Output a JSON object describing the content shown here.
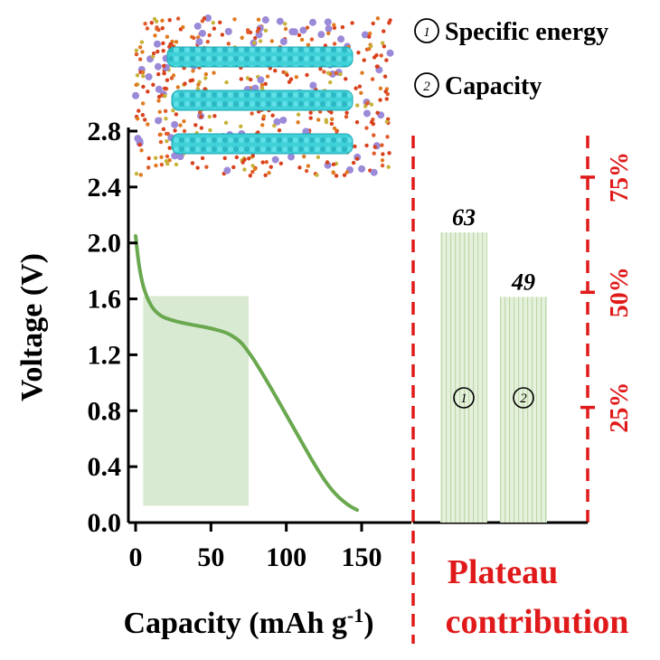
{
  "chart_data": [
    {
      "type": "line",
      "xlabel": "Capacity (mAh g",
      "xlabel_superscript": "-1",
      "xlabel_close": ")",
      "ylabel": "Voltage (V)",
      "xlim": [
        0,
        150
      ],
      "ylim": [
        0,
        2.8
      ],
      "x_ticks": [
        "0",
        "50",
        "100",
        "150"
      ],
      "y_ticks": [
        "0.0",
        "0.4",
        "0.8",
        "1.2",
        "1.6",
        "2.0",
        "2.4",
        "2.8"
      ],
      "series": [
        {
          "color": "#6aa84f",
          "x": [
            0,
            2,
            5,
            10,
            15,
            20,
            30,
            40,
            50,
            60,
            65,
            70,
            75,
            80,
            90,
            100,
            110,
            120,
            130,
            140,
            147
          ],
          "y": [
            2.05,
            1.85,
            1.68,
            1.55,
            1.49,
            1.46,
            1.43,
            1.41,
            1.39,
            1.36,
            1.33,
            1.29,
            1.22,
            1.14,
            0.96,
            0.77,
            0.58,
            0.39,
            0.23,
            0.13,
            0.09
          ]
        }
      ],
      "shaded_region": {
        "x": [
          5,
          75
        ],
        "y": [
          0.12,
          1.62
        ],
        "color": "#d9ead3"
      }
    },
    {
      "type": "bar",
      "title": "Plateau contribution",
      "title_lines": [
        "Plateau",
        "contribution"
      ],
      "categories": [
        "①",
        "②"
      ],
      "values": [
        63,
        49
      ],
      "value_labels": [
        "63",
        "49"
      ],
      "ylim": [
        0,
        85
      ],
      "right_axis_ticks": [
        {
          "value": 25,
          "label": "25%"
        },
        {
          "value": 50,
          "label": "50%"
        },
        {
          "value": 75,
          "label": "75%"
        }
      ],
      "bar_color": "#d9ead3",
      "stripe_color": "#b6d7a8",
      "accent_color": "#e01a1a"
    }
  ],
  "legend": [
    {
      "marker": "①",
      "text": "Specific energy"
    },
    {
      "marker": "②",
      "text": "Capacity"
    }
  ]
}
